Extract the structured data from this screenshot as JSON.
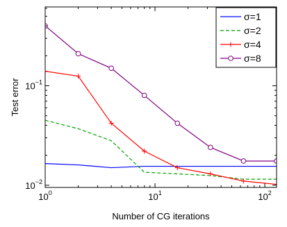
{
  "chart_data": {
    "type": "line",
    "title": "",
    "xlabel": "Number of CG iterations",
    "ylabel": "Test error",
    "xscale": "log",
    "yscale": "log",
    "xlim": [
      1,
      128
    ],
    "ylim": [
      0.0095,
      0.62
    ],
    "grid": false,
    "legend_position": "top-right",
    "x_ticks": [
      {
        "value": 1,
        "base": "10",
        "exp": "0"
      },
      {
        "value": 10,
        "base": "10",
        "exp": "1"
      },
      {
        "value": 100,
        "base": "10",
        "exp": "2"
      }
    ],
    "y_ticks": [
      {
        "value": 0.01,
        "base": "10",
        "exp": "−2"
      },
      {
        "value": 0.1,
        "base": "10",
        "exp": "−1"
      }
    ],
    "series": [
      {
        "name": "σ=1",
        "color": "#0000ff",
        "dash": "solid",
        "marker": "none",
        "x": [
          1,
          2,
          4,
          8,
          16,
          32,
          64,
          128
        ],
        "y": [
          0.0165,
          0.016,
          0.015,
          0.0155,
          0.0155,
          0.0155,
          0.0155,
          0.0155
        ]
      },
      {
        "name": "σ=2",
        "color": "#00a000",
        "dash": "dashed",
        "marker": "none",
        "x": [
          1,
          2,
          4,
          8,
          16,
          32,
          64,
          128
        ],
        "y": [
          0.045,
          0.037,
          0.028,
          0.0135,
          0.013,
          0.0125,
          0.0115,
          0.0115
        ]
      },
      {
        "name": "σ=4",
        "color": "#ff0000",
        "dash": "solid",
        "marker": "plus",
        "x": [
          1,
          2,
          4,
          8,
          16,
          32,
          64,
          128
        ],
        "y": [
          0.14,
          0.125,
          0.042,
          0.022,
          0.015,
          0.013,
          0.011,
          0.0102
        ]
      },
      {
        "name": "σ=8",
        "color": "#800080",
        "dash": "solid",
        "marker": "circle",
        "x": [
          1,
          2,
          4,
          8,
          16,
          32,
          64,
          128
        ],
        "y": [
          0.4,
          0.21,
          0.15,
          0.08,
          0.042,
          0.024,
          0.0175,
          0.0175
        ]
      }
    ]
  }
}
